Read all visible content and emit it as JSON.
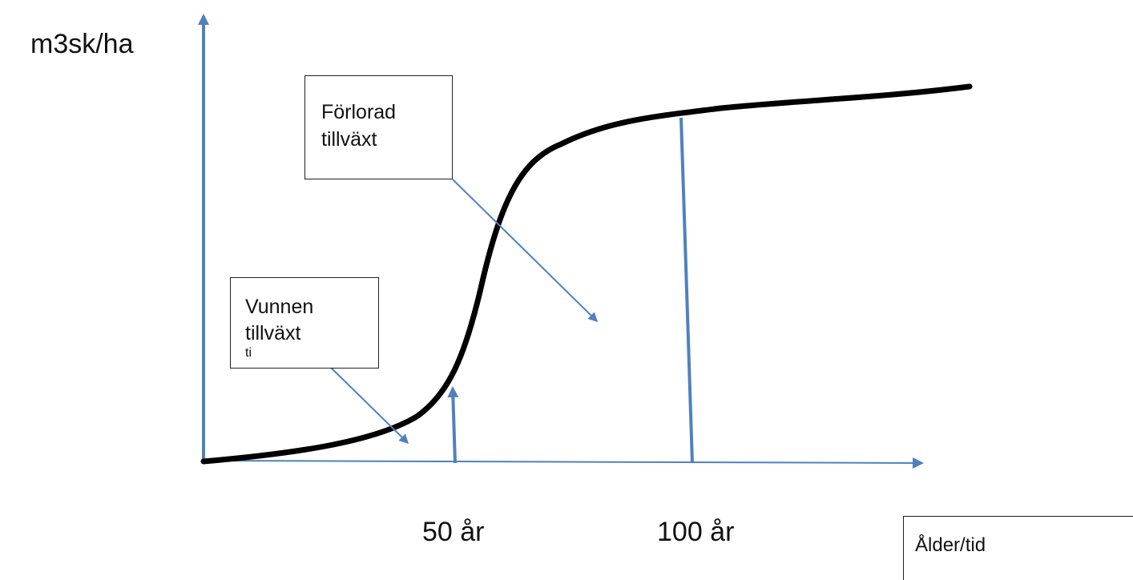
{
  "axes": {
    "y_label": "m3sk/ha",
    "x_ticks": [
      "50 år",
      "100 år"
    ]
  },
  "boxes": {
    "lost_growth": {
      "line1": "Förlorad",
      "line2": "tillväxt"
    },
    "gained_growth": {
      "line1": "Vunnen",
      "line2": "tillväxt",
      "line3": "ti"
    },
    "age_time": {
      "text": "Ålder/tid"
    }
  },
  "colors": {
    "axis": "#4f81bd",
    "curve": "#000000",
    "box_border": "#222222"
  }
}
